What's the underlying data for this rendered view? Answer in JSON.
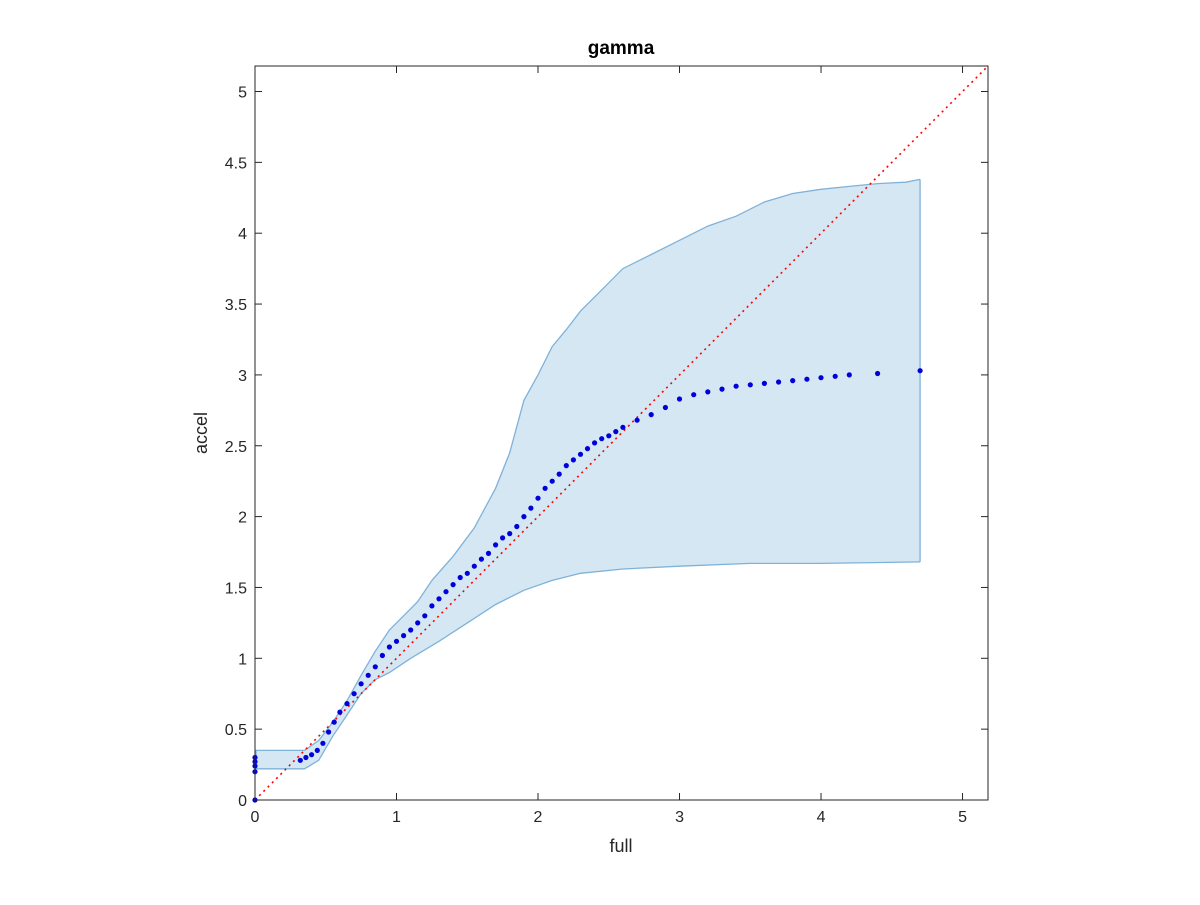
{
  "chart_data": {
    "type": "scatter",
    "title": "gamma",
    "xlabel": "full",
    "ylabel": "accel",
    "xlim": [
      0,
      5.18
    ],
    "ylim": [
      0,
      5.18
    ],
    "xticks": [
      "0",
      "1",
      "2",
      "3",
      "4",
      "5"
    ],
    "yticks": [
      "0",
      "0.5",
      "1",
      "1.5",
      "2",
      "2.5",
      "3",
      "3.5",
      "4",
      "4.5",
      "5"
    ],
    "grid": false,
    "legend": "none",
    "colors": {
      "points": "#0000dd",
      "band_fill": "#d6e7f4",
      "band_edge": "#7fb2d9",
      "reference_line": "#ff0000"
    },
    "reference_line": {
      "x": [
        0,
        5.18
      ],
      "y": [
        0,
        5.18
      ],
      "style": "dotted"
    },
    "confidence_band": {
      "upper": [
        [
          0,
          0.35
        ],
        [
          0.35,
          0.35
        ],
        [
          0.45,
          0.42
        ],
        [
          0.55,
          0.55
        ],
        [
          0.65,
          0.7
        ],
        [
          0.75,
          0.88
        ],
        [
          0.85,
          1.05
        ],
        [
          0.95,
          1.2
        ],
        [
          1.05,
          1.3
        ],
        [
          1.15,
          1.4
        ],
        [
          1.25,
          1.55
        ],
        [
          1.4,
          1.72
        ],
        [
          1.55,
          1.92
        ],
        [
          1.7,
          2.2
        ],
        [
          1.8,
          2.45
        ],
        [
          1.9,
          2.82
        ],
        [
          2.0,
          3.0
        ],
        [
          2.1,
          3.2
        ],
        [
          2.2,
          3.32
        ],
        [
          2.3,
          3.45
        ],
        [
          2.45,
          3.6
        ],
        [
          2.6,
          3.75
        ],
        [
          2.8,
          3.85
        ],
        [
          3.0,
          3.95
        ],
        [
          3.2,
          4.05
        ],
        [
          3.4,
          4.12
        ],
        [
          3.6,
          4.22
        ],
        [
          3.8,
          4.28
        ],
        [
          4.0,
          4.31
        ],
        [
          4.2,
          4.33
        ],
        [
          4.4,
          4.35
        ],
        [
          4.6,
          4.36
        ],
        [
          4.7,
          4.38
        ]
      ],
      "lower": [
        [
          0,
          0.22
        ],
        [
          0.35,
          0.22
        ],
        [
          0.45,
          0.28
        ],
        [
          0.55,
          0.45
        ],
        [
          0.65,
          0.6
        ],
        [
          0.75,
          0.75
        ],
        [
          0.85,
          0.85
        ],
        [
          0.95,
          0.9
        ],
        [
          1.1,
          1.0
        ],
        [
          1.3,
          1.12
        ],
        [
          1.5,
          1.25
        ],
        [
          1.7,
          1.38
        ],
        [
          1.9,
          1.48
        ],
        [
          2.1,
          1.55
        ],
        [
          2.3,
          1.6
        ],
        [
          2.6,
          1.63
        ],
        [
          3.0,
          1.65
        ],
        [
          3.5,
          1.67
        ],
        [
          4.0,
          1.67
        ],
        [
          4.7,
          1.68
        ]
      ]
    },
    "series": [
      {
        "x": [
          0,
          0,
          0,
          0,
          0,
          0.32,
          0.36,
          0.4,
          0.44,
          0.48,
          0.52,
          0.56,
          0.6,
          0.65,
          0.7,
          0.75,
          0.8,
          0.85,
          0.9,
          0.95,
          1.0,
          1.05,
          1.1,
          1.15,
          1.2,
          1.25,
          1.3,
          1.35,
          1.4,
          1.45,
          1.5,
          1.55,
          1.6,
          1.65,
          1.7,
          1.75,
          1.8,
          1.85,
          1.9,
          1.95,
          2.0,
          2.05,
          2.1,
          2.15,
          2.2,
          2.25,
          2.3,
          2.35,
          2.4,
          2.45,
          2.5,
          2.55,
          2.6,
          2.7,
          2.8,
          2.9,
          3.0,
          3.1,
          3.2,
          3.3,
          3.4,
          3.5,
          3.6,
          3.7,
          3.8,
          3.9,
          4.0,
          4.1,
          4.2,
          4.4,
          4.7
        ],
        "y": [
          0.0,
          0.2,
          0.24,
          0.27,
          0.3,
          0.28,
          0.3,
          0.32,
          0.35,
          0.4,
          0.48,
          0.55,
          0.62,
          0.68,
          0.75,
          0.82,
          0.88,
          0.94,
          1.02,
          1.08,
          1.12,
          1.16,
          1.2,
          1.25,
          1.3,
          1.37,
          1.42,
          1.47,
          1.52,
          1.57,
          1.6,
          1.65,
          1.7,
          1.74,
          1.8,
          1.85,
          1.88,
          1.93,
          2.0,
          2.06,
          2.13,
          2.2,
          2.25,
          2.3,
          2.36,
          2.4,
          2.44,
          2.48,
          2.52,
          2.55,
          2.57,
          2.6,
          2.63,
          2.68,
          2.72,
          2.77,
          2.83,
          2.86,
          2.88,
          2.9,
          2.92,
          2.93,
          2.94,
          2.95,
          2.96,
          2.97,
          2.98,
          2.99,
          3.0,
          3.01,
          3.03
        ]
      }
    ]
  }
}
